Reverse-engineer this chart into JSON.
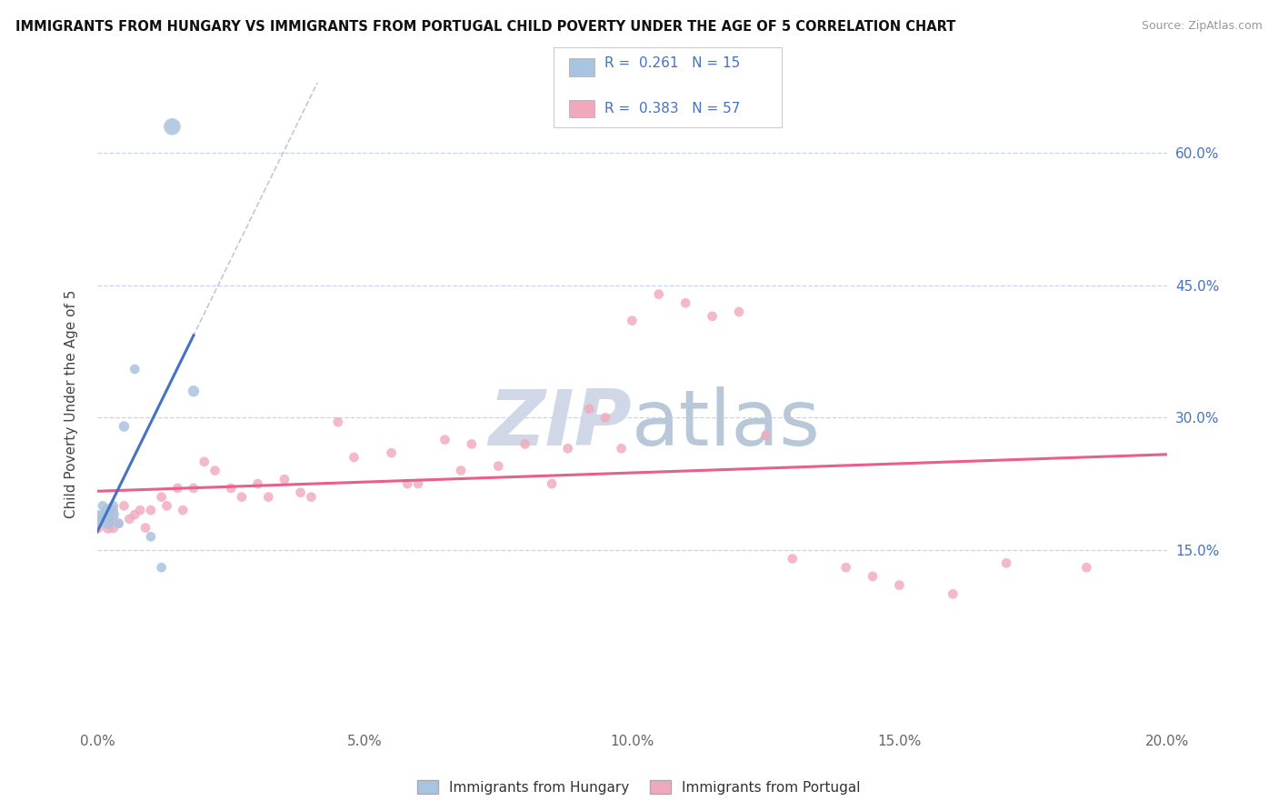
{
  "title": "IMMIGRANTS FROM HUNGARY VS IMMIGRANTS FROM PORTUGAL CHILD POVERTY UNDER THE AGE OF 5 CORRELATION CHART",
  "source": "Source: ZipAtlas.com",
  "ylabel": "Child Poverty Under the Age of 5",
  "r_hungary": 0.261,
  "n_hungary": 15,
  "r_portugal": 0.383,
  "n_portugal": 57,
  "ytick_values": [
    0.15,
    0.3,
    0.45,
    0.6
  ],
  "xlim": [
    0.0,
    0.2
  ],
  "ylim": [
    -0.05,
    0.68
  ],
  "hungary_color": "#a8c4e0",
  "portugal_color": "#f2a8bc",
  "hungary_line_color": "#4472c4",
  "portugal_line_color": "#e8608a",
  "dash_line_color": "#c0c8d8",
  "legend_text_color": "#4472c4",
  "watermark_color": "#d0d8e8",
  "background_color": "#ffffff",
  "hungary_x": [
    0.0,
    0.001,
    0.001,
    0.002,
    0.002,
    0.002,
    0.003,
    0.003,
    0.004,
    0.005,
    0.007,
    0.01,
    0.012,
    0.014,
    0.018
  ],
  "hungary_y": [
    0.185,
    0.185,
    0.2,
    0.195,
    0.185,
    0.18,
    0.2,
    0.19,
    0.18,
    0.29,
    0.355,
    0.165,
    0.13,
    0.63,
    0.33
  ],
  "hungary_sizes": [
    200,
    80,
    60,
    100,
    80,
    80,
    60,
    80,
    60,
    70,
    60,
    60,
    60,
    180,
    80
  ],
  "portugal_x": [
    0.0,
    0.001,
    0.001,
    0.002,
    0.002,
    0.003,
    0.003,
    0.003,
    0.004,
    0.005,
    0.006,
    0.007,
    0.008,
    0.009,
    0.01,
    0.012,
    0.013,
    0.015,
    0.016,
    0.018,
    0.02,
    0.022,
    0.025,
    0.027,
    0.03,
    0.032,
    0.035,
    0.038,
    0.04,
    0.045,
    0.048,
    0.055,
    0.058,
    0.06,
    0.065,
    0.068,
    0.07,
    0.075,
    0.08,
    0.085,
    0.088,
    0.092,
    0.095,
    0.098,
    0.1,
    0.105,
    0.11,
    0.115,
    0.12,
    0.125,
    0.13,
    0.14,
    0.145,
    0.15,
    0.16,
    0.17,
    0.185
  ],
  "portugal_y": [
    0.175,
    0.185,
    0.19,
    0.175,
    0.18,
    0.175,
    0.185,
    0.195,
    0.18,
    0.2,
    0.185,
    0.19,
    0.195,
    0.175,
    0.195,
    0.21,
    0.2,
    0.22,
    0.195,
    0.22,
    0.25,
    0.24,
    0.22,
    0.21,
    0.225,
    0.21,
    0.23,
    0.215,
    0.21,
    0.295,
    0.255,
    0.26,
    0.225,
    0.225,
    0.275,
    0.24,
    0.27,
    0.245,
    0.27,
    0.225,
    0.265,
    0.31,
    0.3,
    0.265,
    0.41,
    0.44,
    0.43,
    0.415,
    0.42,
    0.28,
    0.14,
    0.13,
    0.12,
    0.11,
    0.1,
    0.135,
    0.13
  ],
  "portugal_sizes": [
    80,
    60,
    60,
    80,
    60,
    70,
    60,
    60,
    60,
    60,
    60,
    60,
    60,
    60,
    60,
    60,
    60,
    60,
    60,
    60,
    60,
    60,
    60,
    60,
    60,
    60,
    60,
    60,
    60,
    60,
    60,
    60,
    60,
    60,
    60,
    60,
    60,
    60,
    60,
    60,
    60,
    60,
    60,
    60,
    60,
    60,
    60,
    60,
    60,
    60,
    60,
    60,
    60,
    60,
    60,
    60,
    60
  ]
}
